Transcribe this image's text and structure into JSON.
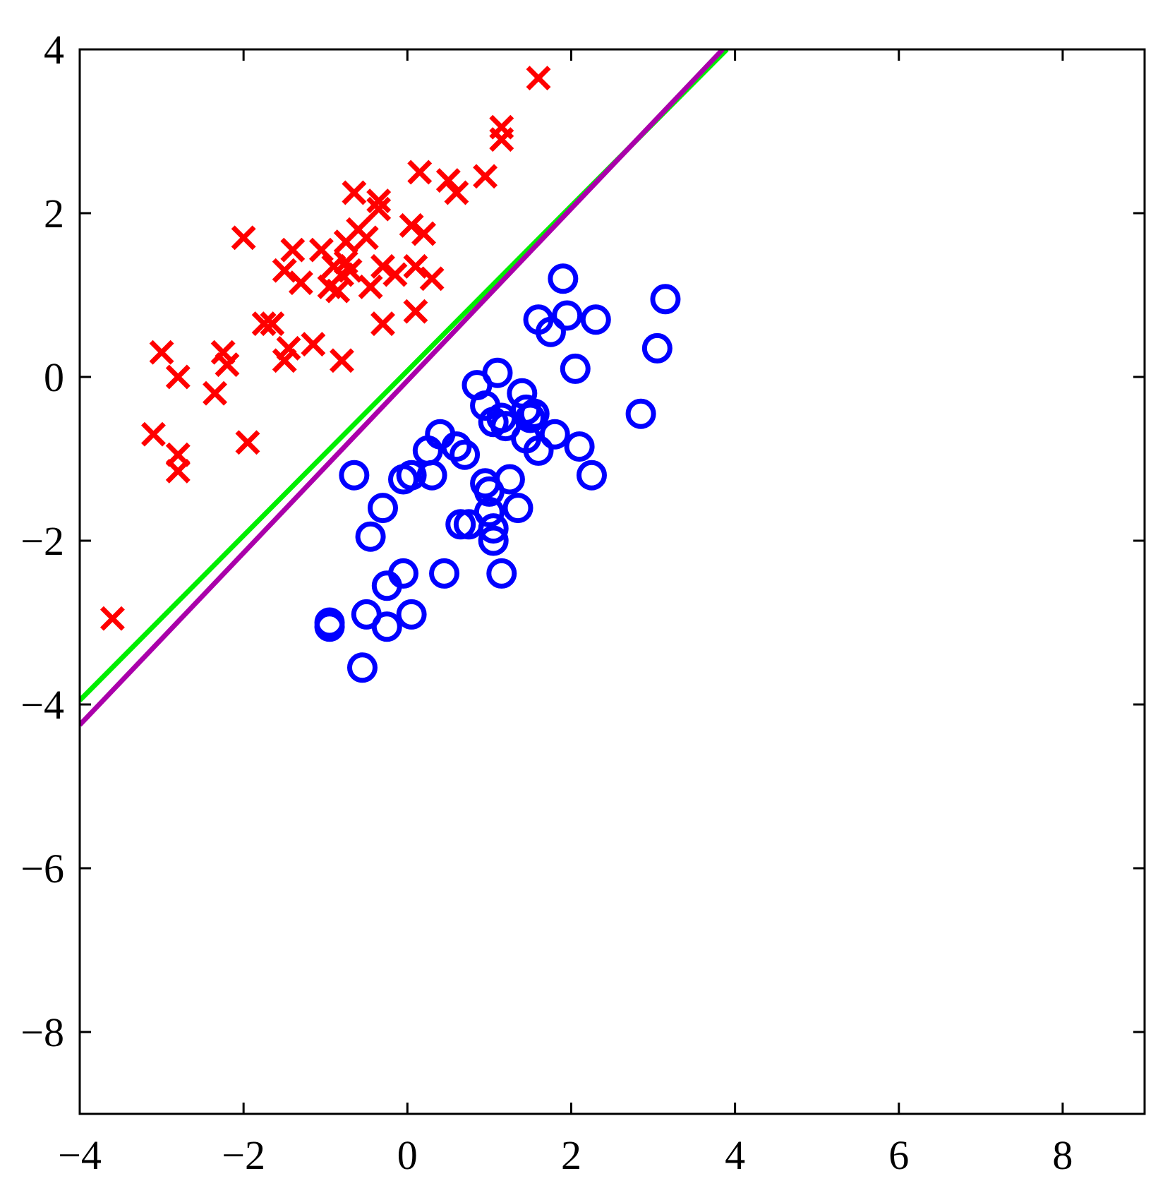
{
  "chart_data": {
    "type": "scatter",
    "title": "",
    "xlabel": "",
    "ylabel": "",
    "xlim": [
      -4,
      9
    ],
    "ylim": [
      -9,
      4
    ],
    "xticks": [
      -4,
      -2,
      0,
      2,
      4,
      6,
      8
    ],
    "yticks": [
      -8,
      -6,
      -4,
      -2,
      0,
      2,
      4
    ],
    "xtick_labels": [
      "−4",
      "−2",
      "0",
      "2",
      "4",
      "6",
      "8"
    ],
    "ytick_labels": [
      "−8",
      "−6",
      "−4",
      "−2",
      "0",
      "2",
      "4"
    ],
    "grid": false,
    "series": [
      {
        "marker": "x",
        "color": "#ff0000",
        "points": [
          [
            -3.6,
            -2.95
          ],
          [
            -3.1,
            -0.7
          ],
          [
            -3.0,
            0.3
          ],
          [
            -2.8,
            0.0
          ],
          [
            -2.8,
            -0.95
          ],
          [
            -2.8,
            -1.15
          ],
          [
            -2.35,
            -0.2
          ],
          [
            -2.25,
            0.3
          ],
          [
            -2.2,
            0.15
          ],
          [
            -2.0,
            1.7
          ],
          [
            -1.95,
            -0.8
          ],
          [
            -1.75,
            0.65
          ],
          [
            -1.65,
            0.65
          ],
          [
            -1.5,
            1.3
          ],
          [
            -1.5,
            0.2
          ],
          [
            -1.45,
            0.35
          ],
          [
            -1.4,
            1.55
          ],
          [
            -1.3,
            1.15
          ],
          [
            -1.15,
            0.4
          ],
          [
            -1.05,
            1.55
          ],
          [
            -0.95,
            1.1
          ],
          [
            -0.9,
            1.35
          ],
          [
            -0.85,
            1.05
          ],
          [
            -0.8,
            1.25
          ],
          [
            -0.8,
            0.2
          ],
          [
            -0.75,
            1.65
          ],
          [
            -0.75,
            1.4
          ],
          [
            -0.7,
            1.3
          ],
          [
            -0.65,
            2.25
          ],
          [
            -0.6,
            1.8
          ],
          [
            -0.5,
            1.7
          ],
          [
            -0.45,
            1.1
          ],
          [
            -0.35,
            2.15
          ],
          [
            -0.35,
            2.05
          ],
          [
            -0.3,
            1.35
          ],
          [
            -0.3,
            0.65
          ],
          [
            -0.15,
            1.25
          ],
          [
            0.05,
            1.85
          ],
          [
            0.1,
            1.35
          ],
          [
            0.1,
            0.8
          ],
          [
            0.15,
            2.5
          ],
          [
            0.2,
            1.75
          ],
          [
            0.3,
            1.2
          ],
          [
            0.5,
            2.4
          ],
          [
            0.6,
            2.25
          ],
          [
            0.95,
            2.45
          ],
          [
            1.15,
            2.9
          ],
          [
            1.15,
            3.05
          ],
          [
            1.6,
            3.65
          ]
        ]
      },
      {
        "marker": "o",
        "color": "#0000ff",
        "points": [
          [
            -0.95,
            -3.0
          ],
          [
            -0.95,
            -3.05
          ],
          [
            -0.65,
            -1.2
          ],
          [
            -0.55,
            -3.55
          ],
          [
            -0.5,
            -2.9
          ],
          [
            -0.45,
            -1.95
          ],
          [
            -0.3,
            -1.6
          ],
          [
            -0.25,
            -2.55
          ],
          [
            -0.25,
            -3.05
          ],
          [
            -0.05,
            -2.4
          ],
          [
            -0.05,
            -1.25
          ],
          [
            0.05,
            -1.2
          ],
          [
            0.05,
            -2.9
          ],
          [
            0.25,
            -0.9
          ],
          [
            0.3,
            -1.2
          ],
          [
            0.4,
            -0.7
          ],
          [
            0.45,
            -2.4
          ],
          [
            0.6,
            -0.85
          ],
          [
            0.65,
            -1.8
          ],
          [
            0.7,
            -0.95
          ],
          [
            0.75,
            -1.8
          ],
          [
            0.85,
            -0.1
          ],
          [
            0.95,
            -1.3
          ],
          [
            0.95,
            -0.35
          ],
          [
            1.0,
            -1.4
          ],
          [
            1.0,
            -1.65
          ],
          [
            1.05,
            -0.55
          ],
          [
            1.05,
            -2.0
          ],
          [
            1.05,
            -1.85
          ],
          [
            1.1,
            0.05
          ],
          [
            1.15,
            -0.5
          ],
          [
            1.15,
            -2.4
          ],
          [
            1.2,
            -0.6
          ],
          [
            1.25,
            -1.25
          ],
          [
            1.35,
            -1.6
          ],
          [
            1.4,
            -0.2
          ],
          [
            1.45,
            -0.4
          ],
          [
            1.45,
            -0.75
          ],
          [
            1.5,
            -0.5
          ],
          [
            1.55,
            -0.45
          ],
          [
            1.6,
            -0.9
          ],
          [
            1.6,
            0.7
          ],
          [
            1.75,
            0.55
          ],
          [
            1.8,
            -0.7
          ],
          [
            1.9,
            1.2
          ],
          [
            1.95,
            0.75
          ],
          [
            2.05,
            0.1
          ],
          [
            2.1,
            -0.85
          ],
          [
            2.25,
            -1.2
          ],
          [
            2.3,
            0.7
          ],
          [
            2.85,
            -0.45
          ],
          [
            3.05,
            0.35
          ],
          [
            3.15,
            0.95
          ]
        ]
      }
    ],
    "lines": [
      {
        "color": "#00ee00",
        "points": [
          [
            -4,
            -3.95
          ],
          [
            3.9,
            4.0
          ]
        ]
      },
      {
        "color": "#aa00aa",
        "points": [
          [
            -4,
            -4.25
          ],
          [
            3.85,
            4.0
          ]
        ]
      }
    ]
  }
}
